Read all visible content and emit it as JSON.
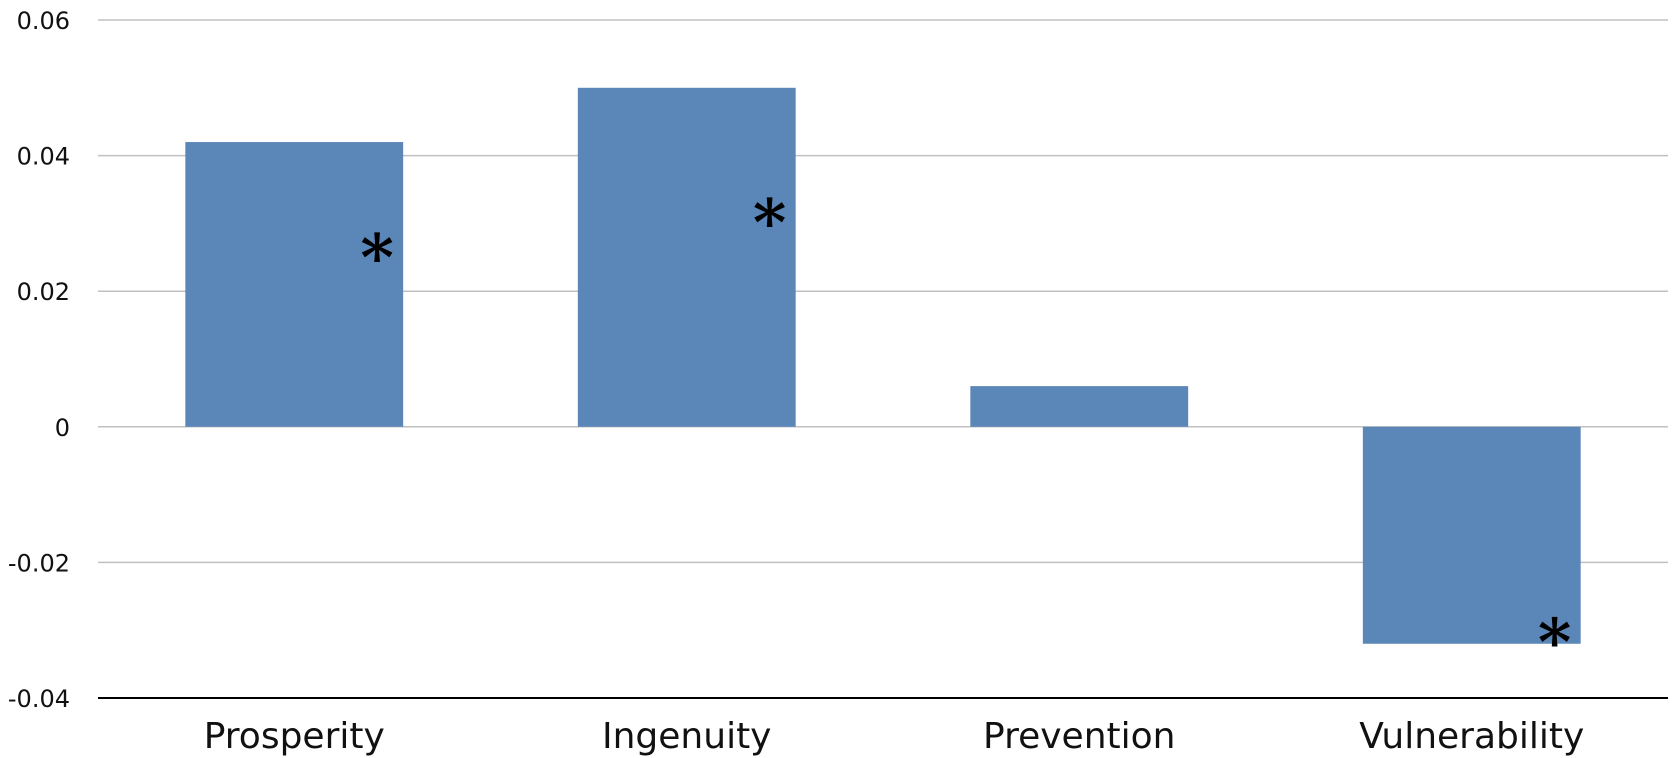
{
  "chart_data": {
    "type": "bar",
    "title": "",
    "xlabel": "",
    "ylabel": "",
    "categories": [
      "Prosperity",
      "Ingenuity",
      "Prevention",
      "Vulnerability"
    ],
    "values": [
      0.042,
      0.05,
      0.006,
      -0.032
    ],
    "annotations": [
      "*",
      "*",
      "",
      "*"
    ],
    "ylim": [
      -0.04,
      0.06
    ],
    "yticks": [
      0.06,
      0.04,
      0.02,
      0,
      -0.02,
      -0.04
    ],
    "ytick_labels": [
      "0.06",
      "0.04",
      "0.02",
      "0",
      "-0.02",
      "-0.04"
    ],
    "grid": true,
    "legend": "none",
    "bar_color": "#5b87b8"
  }
}
